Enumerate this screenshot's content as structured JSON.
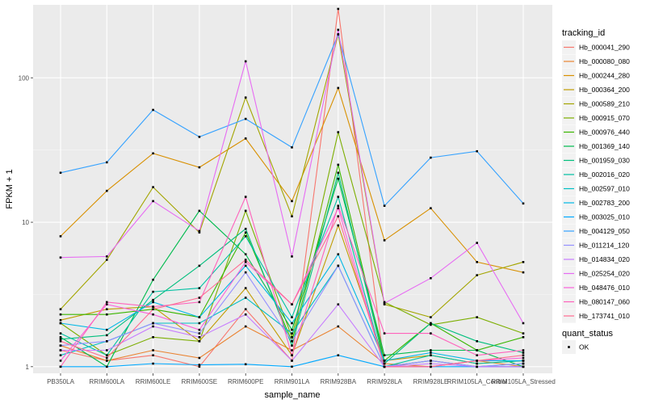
{
  "chart_data": {
    "type": "line",
    "title": "",
    "xlabel": "sample_name",
    "ylabel": "FPKM + 1",
    "y_scale": "log10",
    "ylim": [
      0.9,
      320
    ],
    "y_ticks": [
      1,
      10,
      100
    ],
    "y_tick_labels": [
      "1",
      "10",
      "100"
    ],
    "grid": true,
    "legend_position": "right",
    "categories": [
      "PB350LA",
      "RRIM600LA",
      "RRIM600LE",
      "RRIM600SE",
      "RRIM600PE",
      "RRIM901LA",
      "RRIM928BA",
      "RRIM928LA",
      "RRIM928LE",
      "RRIM105LA_Control",
      "RRIM105LA_Stressed"
    ],
    "category_labels": [
      "PB350LA",
      "RRIM600LA",
      "RRIM600LE",
      "RRIM600SE",
      "RRIM600PE",
      "RRIM901LA",
      "RRIM928BA",
      "RRIM928LA",
      "RRIM928LE",
      "RRIM105LA_Control",
      "RRIM105LA_Stressed"
    ],
    "color_legend_title": "tracking_id",
    "shape_legend_title": "quant_status",
    "shape_legend_items": [
      "OK"
    ],
    "series": [
      {
        "name": "Hb_000041_290",
        "color": "#F8766D",
        "values": [
          1.3,
          1.1,
          1.2,
          1.0,
          2.5,
          1.1,
          300,
          1.0,
          1.1,
          1.0,
          1.0
        ]
      },
      {
        "name": "Hb_000080_080",
        "color": "#EA8331",
        "values": [
          1.4,
          1.1,
          1.3,
          1.15,
          1.9,
          1.3,
          1.9,
          1.05,
          1.0,
          1.1,
          1.0
        ]
      },
      {
        "name": "Hb_000244_280",
        "color": "#D89000",
        "values": [
          8.0,
          16.5,
          30.0,
          24.0,
          38.0,
          14.0,
          85.0,
          7.5,
          12.5,
          5.3,
          4.5
        ]
      },
      {
        "name": "Hb_000364_200",
        "color": "#C09B00",
        "values": [
          2.1,
          2.5,
          2.6,
          1.5,
          3.5,
          1.2,
          9.5,
          1.1,
          1.2,
          1.05,
          1.1
        ]
      },
      {
        "name": "Hb_000589_210",
        "color": "#A3A500",
        "values": [
          2.5,
          5.5,
          17.5,
          8.5,
          73.0,
          11.0,
          200.0,
          2.7,
          2.2,
          4.3,
          5.3
        ]
      },
      {
        "name": "Hb_000915_070",
        "color": "#7CAE00",
        "values": [
          2.0,
          1.2,
          1.6,
          1.5,
          12.0,
          1.6,
          42.0,
          2.8,
          1.95,
          2.2,
          1.7
        ]
      },
      {
        "name": "Hb_000976_440",
        "color": "#39B600",
        "values": [
          2.3,
          2.3,
          2.5,
          2.2,
          8.5,
          1.5,
          25.0,
          1.1,
          2.0,
          1.3,
          1.6
        ]
      },
      {
        "name": "Hb_001369_140",
        "color": "#00BB4E",
        "values": [
          1.6,
          1.0,
          4.0,
          12.0,
          6.0,
          1.8,
          20.0,
          1.2,
          1.3,
          1.3,
          1.0
        ]
      },
      {
        "name": "Hb_001959_030",
        "color": "#00BF7D",
        "values": [
          1.55,
          1.65,
          2.9,
          5.0,
          9.0,
          1.4,
          22.0,
          1.05,
          2.0,
          1.5,
          1.25
        ]
      },
      {
        "name": "Hb_002016_020",
        "color": "#00C1A3",
        "values": [
          1.7,
          1.2,
          3.3,
          3.5,
          8.0,
          2.2,
          15.0,
          1.0,
          1.2,
          1.05,
          1.1
        ]
      },
      {
        "name": "Hb_002597_010",
        "color": "#00BFC4",
        "values": [
          1.2,
          1.5,
          2.0,
          2.0,
          3.0,
          1.7,
          5.0,
          1.0,
          1.1,
          1.0,
          1.05
        ]
      },
      {
        "name": "Hb_002783_200",
        "color": "#00B8E5",
        "values": [
          2.0,
          1.8,
          2.8,
          2.2,
          5.0,
          2.0,
          6.0,
          1.1,
          1.25,
          1.1,
          1.1
        ]
      },
      {
        "name": "Hb_003025_010",
        "color": "#00A9FF",
        "values": [
          1.0,
          1.0,
          1.05,
          1.03,
          1.04,
          1.0,
          1.2,
          1.0,
          1.0,
          1.0,
          1.0
        ]
      },
      {
        "name": "Hb_004129_050",
        "color": "#35A2FF",
        "values": [
          22.0,
          26.0,
          60.0,
          39.0,
          52.0,
          33.0,
          200.0,
          13.0,
          28.0,
          31.0,
          13.5
        ]
      },
      {
        "name": "Hb_011214_120",
        "color": "#9590FF",
        "values": [
          1.4,
          1.5,
          2.0,
          1.7,
          4.5,
          1.5,
          5.0,
          1.0,
          1.1,
          1.0,
          1.05
        ]
      },
      {
        "name": "Hb_014834_020",
        "color": "#C77CFF",
        "values": [
          1.3,
          1.3,
          1.9,
          1.6,
          2.3,
          1.1,
          2.7,
          1.0,
          1.05,
          1.0,
          1.0
        ]
      },
      {
        "name": "Hb_025254_020",
        "color": "#E76BF3",
        "values": [
          5.7,
          5.8,
          14.0,
          8.7,
          130.0,
          5.8,
          215.0,
          2.75,
          4.1,
          7.2,
          2.0
        ]
      },
      {
        "name": "Hb_048476_010",
        "color": "#FA62DB",
        "values": [
          1.1,
          2.7,
          2.3,
          1.8,
          5.3,
          2.7,
          12.5,
          1.0,
          1.0,
          1.1,
          1.15
        ]
      },
      {
        "name": "Hb_080147_060",
        "color": "#FF62BC",
        "values": [
          1.0,
          2.8,
          2.6,
          2.8,
          15.0,
          1.2,
          13.0,
          1.7,
          1.7,
          1.2,
          1.3
        ]
      },
      {
        "name": "Hb_173741_010",
        "color": "#FF6C91",
        "values": [
          1.5,
          1.15,
          2.5,
          3.0,
          5.5,
          2.7,
          11.0,
          1.0,
          1.0,
          1.1,
          1.2
        ]
      }
    ]
  }
}
